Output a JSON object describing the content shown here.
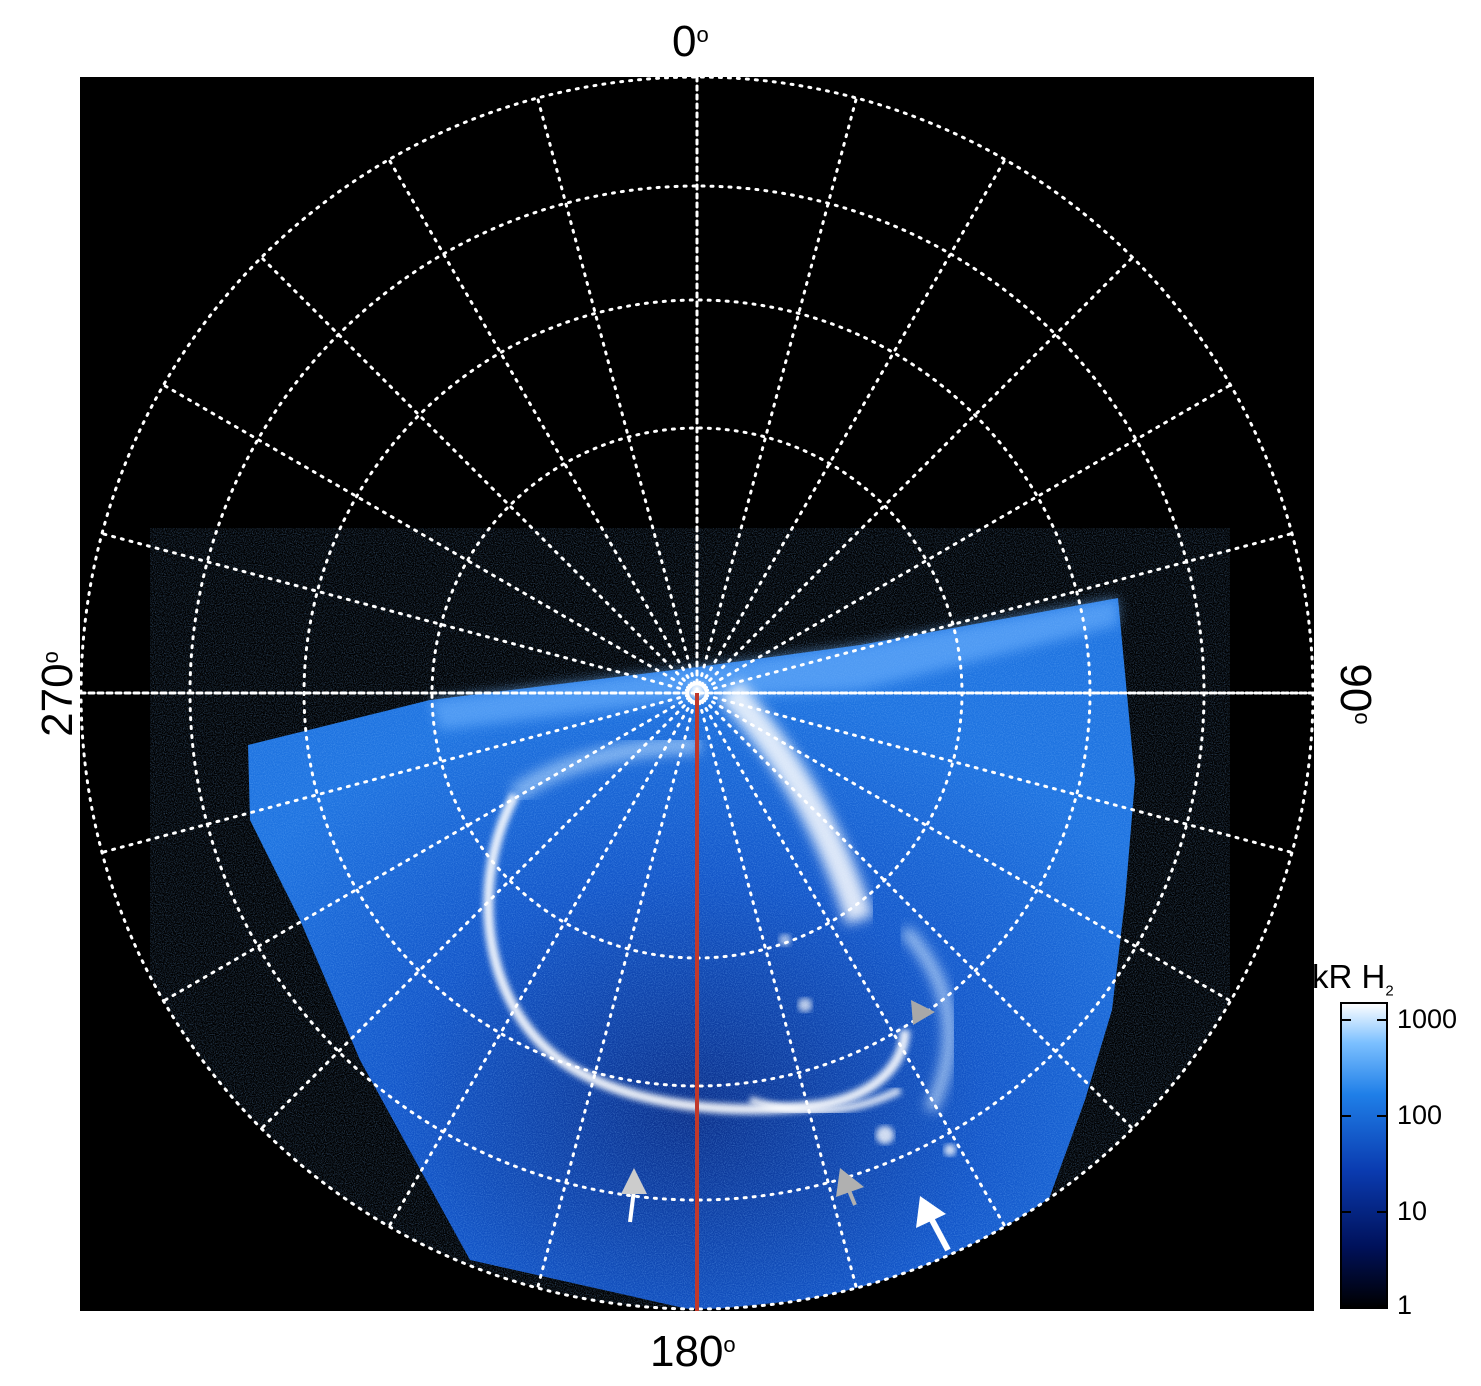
{
  "figure": {
    "description_labels": {
      "top": "0",
      "bottom": "180",
      "left": "270",
      "right": "90",
      "degree_symbol": "o"
    },
    "colorbar": {
      "title_main": "kR H",
      "title_sub": "2",
      "ticks": [
        "1000",
        "100",
        "10",
        "1"
      ],
      "colors": [
        "#000000",
        "#00115a",
        "#0a3bb0",
        "#1f7fe8",
        "#7cc0ff",
        "#ffffff"
      ]
    },
    "colors": {
      "background": "#000000",
      "grid": "#ffffff",
      "meridian_line": "#c0392b",
      "arrow_white": "#ffffff",
      "arrow_gray": "#b0b0b0",
      "aurora_bright": "#ffffff",
      "aurora_mid": "#4aa3ff",
      "aurora_dim": "#0b3a9c"
    }
  }
}
